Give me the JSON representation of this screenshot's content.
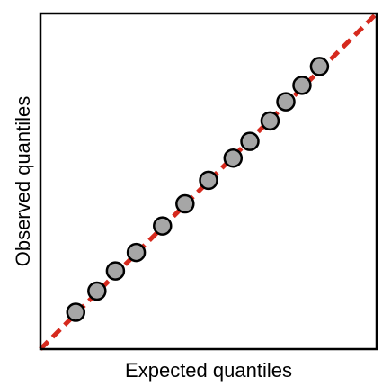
{
  "chart_data": {
    "type": "scatter",
    "title": "",
    "xlabel": "Expected quantiles",
    "ylabel": "Observed quantiles",
    "xlim": [
      0,
      1
    ],
    "ylim": [
      0,
      1
    ],
    "grid": false,
    "ticks": false,
    "points": [
      {
        "x": 0.105,
        "y": 0.11
      },
      {
        "x": 0.168,
        "y": 0.173
      },
      {
        "x": 0.223,
        "y": 0.233
      },
      {
        "x": 0.285,
        "y": 0.288
      },
      {
        "x": 0.363,
        "y": 0.367
      },
      {
        "x": 0.43,
        "y": 0.433
      },
      {
        "x": 0.5,
        "y": 0.503
      },
      {
        "x": 0.573,
        "y": 0.569
      },
      {
        "x": 0.623,
        "y": 0.619
      },
      {
        "x": 0.683,
        "y": 0.68
      },
      {
        "x": 0.73,
        "y": 0.737
      },
      {
        "x": 0.778,
        "y": 0.786
      },
      {
        "x": 0.83,
        "y": 0.842
      }
    ],
    "reference_line": {
      "from": [
        0,
        0
      ],
      "to": [
        1,
        1
      ],
      "style": "dashed"
    },
    "colors": {
      "marker_fill": "#a6a6a6",
      "marker_edge": "#000000",
      "reference_line": "#d62a1e",
      "frame": "#000000"
    }
  }
}
